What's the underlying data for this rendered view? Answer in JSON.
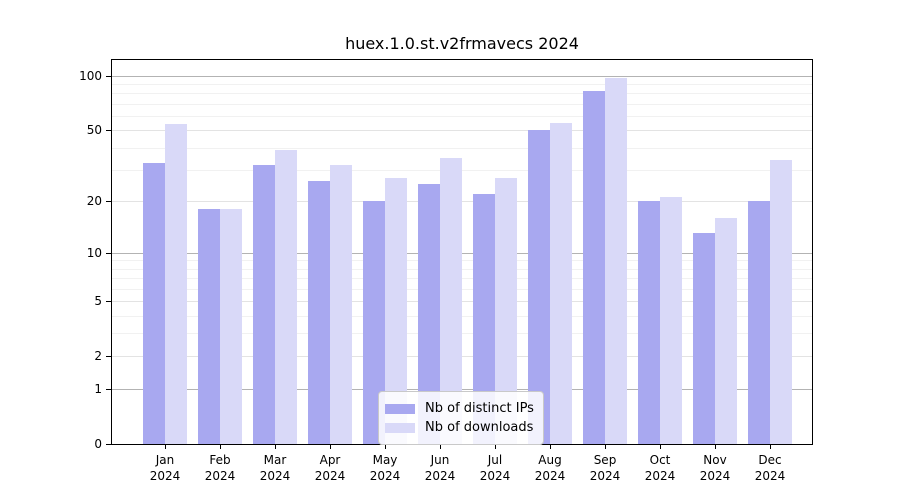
{
  "title": "huex.1.0.st.v2frmavecs 2024",
  "chart_data": {
    "type": "bar",
    "title": "huex.1.0.st.v2frmavecs 2024",
    "categories": [
      "Jan 2024",
      "Feb 2024",
      "Mar 2024",
      "Apr 2024",
      "May 2024",
      "Jun 2024",
      "Jul 2024",
      "Aug 2024",
      "Sep 2024",
      "Oct 2024",
      "Nov 2024",
      "Dec 2024"
    ],
    "month_labels": [
      "Jan",
      "Feb",
      "Mar",
      "Apr",
      "May",
      "Jun",
      "Jul",
      "Aug",
      "Sep",
      "Oct",
      "Nov",
      "Dec"
    ],
    "year_label": "2024",
    "series": [
      {
        "name": "Nb of distinct IPs",
        "color": "#a8a8f0",
        "values": [
          33,
          18,
          32,
          26,
          20,
          25,
          22,
          50,
          82,
          20,
          13,
          20
        ]
      },
      {
        "name": "Nb of downloads",
        "color": "#d9d9f8",
        "values": [
          54,
          18,
          39,
          32,
          27,
          35,
          27,
          55,
          97,
          21,
          16,
          34
        ]
      }
    ],
    "xlabel": "",
    "ylabel": "",
    "yscale": "log10(value+1)",
    "ylim": [
      0,
      122
    ],
    "yticks": [
      100,
      50,
      20,
      10,
      5,
      2,
      1,
      0
    ],
    "gridlines": {
      "decade": [
        1,
        10,
        100
      ],
      "submajor": [
        2,
        5,
        20,
        50
      ],
      "minor": [
        3,
        4,
        6,
        7,
        8,
        9,
        30,
        40,
        60,
        70,
        80,
        90
      ]
    },
    "grid": true,
    "legend_position": "bottom-center"
  },
  "legend": {
    "items": [
      {
        "label": "Nb of distinct IPs",
        "color": "#a8a8f0"
      },
      {
        "label": "Nb of downloads",
        "color": "#d9d9f8"
      }
    ]
  },
  "colors": {
    "background": "#ffffff",
    "axis": "#000000",
    "grid_decade": "#b3b3b3",
    "grid_submajor": "#e3e3e3",
    "grid_minor": "#f1f1f1",
    "text": "#000000"
  }
}
